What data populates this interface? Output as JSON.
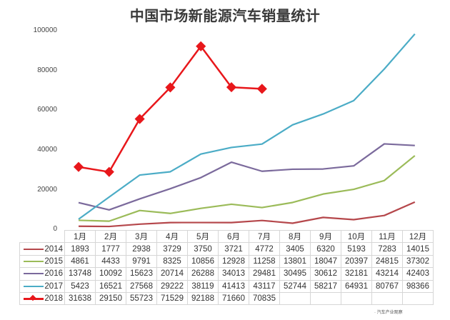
{
  "chart_data": {
    "type": "line",
    "title": "中国市场新能源汽车销量统计",
    "xlabel": "",
    "ylabel": "",
    "ylim": [
      0,
      100000
    ],
    "yticks": [
      0,
      20000,
      40000,
      60000,
      80000,
      100000
    ],
    "grid": false,
    "legend_position": "data-table-bottom",
    "categories": [
      "1月",
      "2月",
      "3月",
      "4月",
      "5月",
      "6月",
      "7月",
      "8月",
      "9月",
      "10月",
      "11月",
      "12月"
    ],
    "series": [
      {
        "name": "2014",
        "color": "#b5474b",
        "marker": "none",
        "values": [
          1893,
          1777,
          2938,
          3729,
          3750,
          3721,
          4772,
          3405,
          6320,
          5193,
          7283,
          14015
        ]
      },
      {
        "name": "2015",
        "color": "#9bbb59",
        "marker": "none",
        "values": [
          4861,
          4433,
          9791,
          8325,
          10856,
          12928,
          11258,
          13801,
          18047,
          20397,
          24815,
          37302
        ]
      },
      {
        "name": "2016",
        "color": "#7b6a9c",
        "marker": "none",
        "values": [
          13748,
          10092,
          15623,
          20714,
          26288,
          34013,
          29481,
          30495,
          30612,
          32181,
          43214,
          42403
        ]
      },
      {
        "name": "2017",
        "color": "#4bacc6",
        "marker": "none",
        "values": [
          5423,
          16521,
          27568,
          29222,
          38119,
          41413,
          43117,
          52744,
          58217,
          64931,
          80767,
          98366
        ]
      },
      {
        "name": "2018",
        "color": "#e8171b",
        "marker": "diamond",
        "values": [
          31638,
          29150,
          55723,
          71529,
          92188,
          71660,
          70835,
          null,
          null,
          null,
          null,
          null
        ]
      }
    ]
  },
  "title": "中国市场新能源汽车销量统计",
  "yaxis": {
    "ticks": [
      "100000",
      "80000",
      "60000",
      "40000",
      "20000",
      "0"
    ]
  },
  "table": {
    "header": [
      "1月",
      "2月",
      "3月",
      "4月",
      "5月",
      "6月",
      "7月",
      "8月",
      "9月",
      "10月",
      "11月",
      "12月"
    ],
    "rows": [
      {
        "label": "2014",
        "cells": [
          "1893",
          "1777",
          "2938",
          "3729",
          "3750",
          "3721",
          "4772",
          "3405",
          "6320",
          "5193",
          "7283",
          "14015"
        ]
      },
      {
        "label": "2015",
        "cells": [
          "4861",
          "4433",
          "9791",
          "8325",
          "10856",
          "12928",
          "11258",
          "13801",
          "18047",
          "20397",
          "24815",
          "37302"
        ]
      },
      {
        "label": "2016",
        "cells": [
          "13748",
          "10092",
          "15623",
          "20714",
          "26288",
          "34013",
          "29481",
          "30495",
          "30612",
          "32181",
          "43214",
          "42403"
        ]
      },
      {
        "label": "2017",
        "cells": [
          "5423",
          "16521",
          "27568",
          "29222",
          "38119",
          "41413",
          "43117",
          "52744",
          "58217",
          "64931",
          "80767",
          "98366"
        ]
      },
      {
        "label": "2018",
        "cells": [
          "31638",
          "29150",
          "55723",
          "71529",
          "92188",
          "71660",
          "70835",
          "",
          "",
          "",
          "",
          ""
        ]
      }
    ]
  },
  "watermark": "· 汽车产业观察"
}
